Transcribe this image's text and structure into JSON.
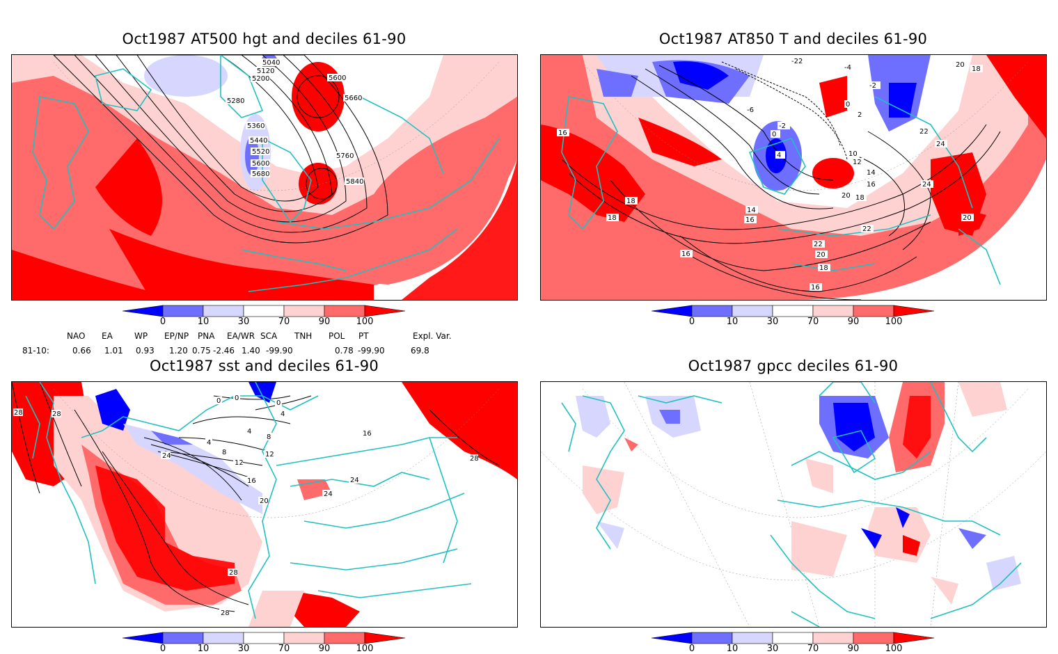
{
  "panels": [
    {
      "id": "p1",
      "title": "Oct1987 AT500 hgt and deciles 61-90",
      "contour_labels": [
        "5040",
        "5120",
        "5200",
        "5280",
        "5360",
        "5440",
        "5520",
        "5600",
        "5680",
        "5600",
        "5660",
        "5760",
        "5840"
      ]
    },
    {
      "id": "p2",
      "title": "Oct1987 AT850 T and deciles 61-90",
      "contour_labels": [
        "-22",
        "-4",
        "-2",
        "0",
        "2",
        "-6",
        "0",
        "-2",
        "4",
        "16",
        "18",
        "18",
        "20",
        "18",
        "20",
        "16",
        "14",
        "16",
        "12",
        "10",
        "14",
        "16",
        "20",
        "18",
        "22",
        "22",
        "20",
        "18",
        "16",
        "16",
        "24",
        "22",
        "24",
        "20"
      ]
    },
    {
      "id": "p3",
      "title": "Oct1987 sst and deciles 61-90",
      "contour_labels": [
        "28",
        "28",
        "0",
        "0",
        "0",
        "4",
        "4",
        "8",
        "4",
        "8",
        "12",
        "12",
        "16",
        "20",
        "24",
        "16",
        "24",
        "24",
        "28",
        "28",
        "28"
      ]
    },
    {
      "id": "p4",
      "title": "Oct1987 gpcc deciles 61-90",
      "contour_labels": []
    }
  ],
  "colorbar": {
    "labels": [
      "0",
      "10",
      "30",
      "70",
      "90",
      "100"
    ],
    "colors": [
      "#0000ff",
      "#6e6eff",
      "#d6d6ff",
      "#ffffff",
      "#ffd2d2",
      "#ff6a6a",
      "#ff0000"
    ]
  },
  "indices": {
    "row_label": "81-10:",
    "headers": [
      "NAO",
      "EA",
      "WP",
      "EP/NP",
      "PNA",
      "EA/WR",
      "SCA",
      "TNH",
      "POL",
      "PT",
      "Expl. Var."
    ],
    "values": [
      "0.66",
      "1.01",
      "0.93",
      "1.20",
      "0.75",
      "-2.46",
      "1.40",
      "-99.90",
      "0.78",
      "-99.90",
      "69.8"
    ]
  }
}
